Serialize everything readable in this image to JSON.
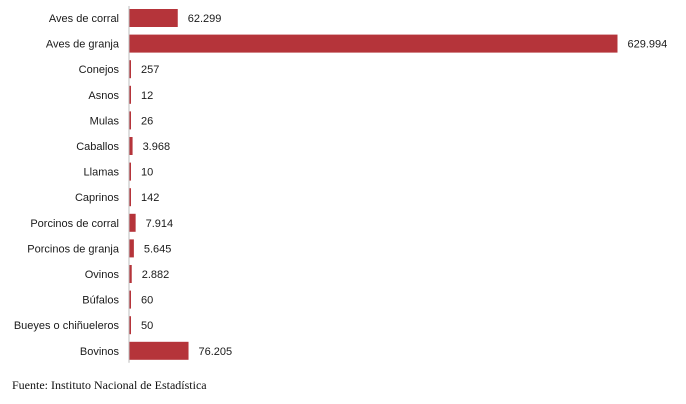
{
  "chart_data": {
    "type": "bar",
    "orientation": "horizontal",
    "categories": [
      "Aves de corral",
      "Aves de granja",
      "Conejos",
      "Asnos",
      "Mulas",
      "Caballos",
      "Llamas",
      "Caprinos",
      "Porcinos de corral",
      "Porcinos de granja",
      "Ovinos",
      "Búfalos",
      "Bueyes o chiñueleros",
      "Bovinos"
    ],
    "values": [
      62299,
      629994,
      257,
      12,
      26,
      3968,
      10,
      142,
      7914,
      5645,
      2882,
      60,
      50,
      76205
    ],
    "value_labels": [
      "62.299",
      "629.994",
      "257",
      "12",
      "26",
      "3.968",
      "10",
      "142",
      "7.914",
      "5.645",
      "2.882",
      "60",
      "50",
      "76.205"
    ],
    "xlim": [
      0,
      629994
    ],
    "grid": false,
    "bar_color": "#b5343a"
  },
  "source": "Fuente: Instituto Nacional de Estadística"
}
